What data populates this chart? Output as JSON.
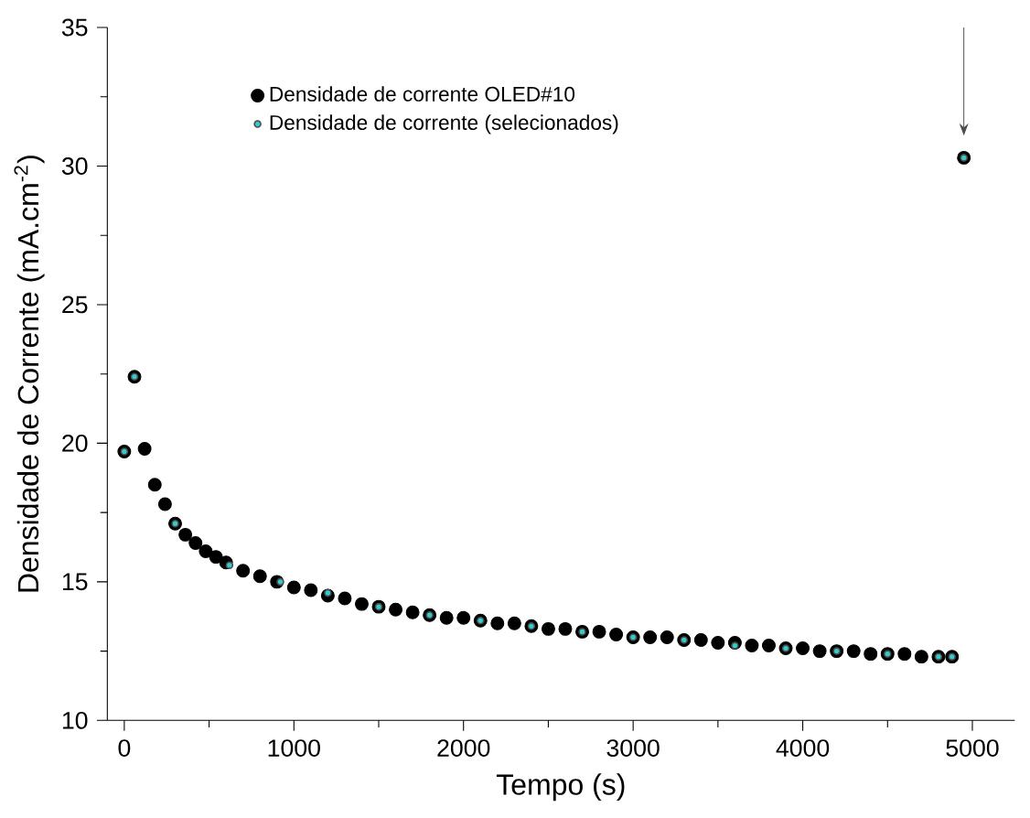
{
  "chart_data": {
    "type": "scatter",
    "xlabel": "Tempo (s)",
    "ylabel": "Densidade de Corrente (mA.cm$^{-2}$)",
    "xlim": [
      -100,
      5250
    ],
    "ylim": [
      10,
      35
    ],
    "xticks": [
      0,
      1000,
      2000,
      3000,
      4000,
      5000
    ],
    "yticks": [
      10,
      15,
      20,
      25,
      30,
      35
    ],
    "legend": "top left",
    "grid": false,
    "series": [
      {
        "name": "Densidade de corrente OLED#10",
        "color": "#000000",
        "x": [
          0,
          60,
          120,
          180,
          240,
          300,
          360,
          420,
          480,
          540,
          600,
          700,
          800,
          900,
          1000,
          1100,
          1200,
          1300,
          1400,
          1500,
          1600,
          1700,
          1800,
          1900,
          2000,
          2100,
          2200,
          2300,
          2400,
          2500,
          2600,
          2700,
          2800,
          2900,
          3000,
          3100,
          3200,
          3300,
          3400,
          3500,
          3600,
          3700,
          3800,
          3900,
          4000,
          4100,
          4200,
          4300,
          4400,
          4500,
          4600,
          4700,
          4800,
          4880,
          4950
        ],
        "values": [
          19.7,
          22.4,
          19.8,
          18.5,
          17.8,
          17.1,
          16.7,
          16.4,
          16.1,
          15.9,
          15.7,
          15.4,
          15.2,
          15.0,
          14.8,
          14.7,
          14.5,
          14.4,
          14.2,
          14.1,
          14.0,
          13.9,
          13.8,
          13.7,
          13.7,
          13.6,
          13.5,
          13.5,
          13.4,
          13.3,
          13.3,
          13.2,
          13.2,
          13.1,
          13.0,
          13.0,
          13.0,
          12.9,
          12.9,
          12.8,
          12.8,
          12.7,
          12.7,
          12.6,
          12.6,
          12.5,
          12.5,
          12.5,
          12.4,
          12.4,
          12.4,
          12.3,
          12.3,
          12.3,
          30.3
        ]
      },
      {
        "name": "Densidade de corrente (selecionados)",
        "color": "#33cccc",
        "x": [
          0,
          60,
          300,
          620,
          920,
          1200,
          1500,
          1800,
          2100,
          2400,
          2700,
          3000,
          3300,
          3600,
          3900,
          4200,
          4500,
          4800,
          4880,
          4950
        ],
        "values": [
          19.7,
          22.4,
          17.1,
          15.6,
          15.0,
          14.6,
          14.1,
          13.8,
          13.6,
          13.4,
          13.2,
          13.0,
          12.9,
          12.7,
          12.6,
          12.5,
          12.4,
          12.3,
          12.3,
          30.3
        ]
      }
    ]
  }
}
